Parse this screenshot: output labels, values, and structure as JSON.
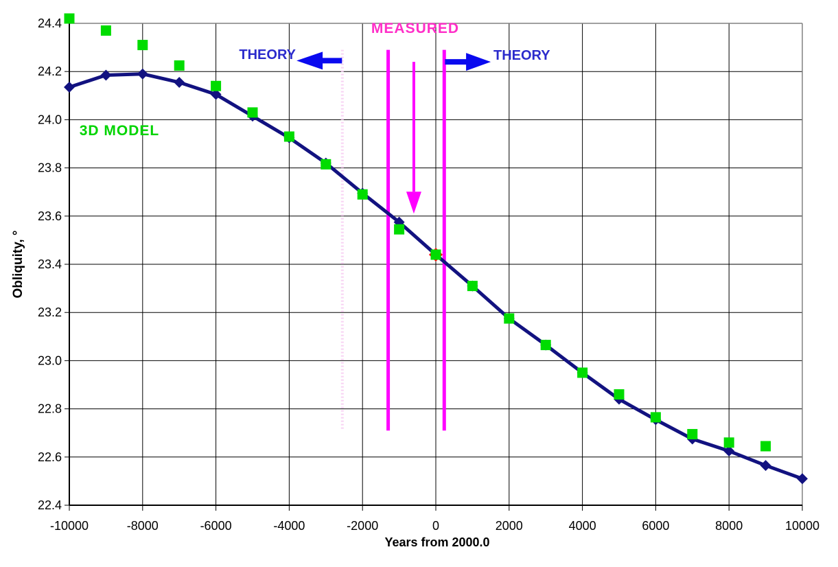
{
  "chart_data": {
    "type": "line",
    "title": "",
    "xlabel": "Years from 2000.0",
    "ylabel": "Obliquity, °",
    "xlim": [
      -10000,
      10000
    ],
    "ylim": [
      22.4,
      24.4
    ],
    "grid": true,
    "legend_position": "none",
    "x_ticks": [
      -10000,
      -8000,
      -6000,
      -4000,
      -2000,
      0,
      2000,
      4000,
      6000,
      8000,
      10000
    ],
    "x_tick_labels": [
      "-10000",
      "-8000",
      "-6000",
      "-4000",
      "-2000",
      "0",
      "2000",
      "4000",
      "6000",
      "8000",
      "10000"
    ],
    "y_ticks": [
      22.4,
      22.6,
      22.8,
      23.0,
      23.2,
      23.4,
      23.6,
      23.8,
      24.0,
      24.2,
      24.4
    ],
    "y_tick_labels": [
      "22.4",
      "22.6",
      "22.8",
      "23.0",
      "23.2",
      "23.4",
      "23.6",
      "23.8",
      "24.0",
      "24.2",
      "24.4"
    ],
    "series": [
      {
        "name": "THEORY",
        "marker": "diamond",
        "line": true,
        "color": "#121280",
        "x": [
          -10000,
          -9000,
          -8000,
          -7000,
          -6000,
          -5000,
          -4000,
          -3000,
          -2000,
          -1000,
          0,
          1000,
          2000,
          3000,
          4000,
          5000,
          6000,
          7000,
          8000,
          9000,
          10000
        ],
        "values": [
          24.135,
          24.185,
          24.19,
          24.155,
          24.105,
          24.015,
          23.925,
          23.82,
          23.695,
          23.575,
          23.44,
          23.31,
          23.175,
          23.065,
          22.95,
          22.84,
          22.755,
          22.675,
          22.625,
          22.565,
          22.51
        ]
      },
      {
        "name": "3D MODEL",
        "marker": "square",
        "line": false,
        "color": "#00dc00",
        "x": [
          -10000,
          -9000,
          -8000,
          -7000,
          -6000,
          -5000,
          -4000,
          -3000,
          -2000,
          -1000,
          0,
          1000,
          2000,
          3000,
          4000,
          5000,
          6000,
          7000,
          8000,
          9000
        ],
        "values": [
          24.42,
          24.37,
          24.31,
          24.225,
          24.14,
          24.03,
          23.93,
          23.815,
          23.69,
          23.545,
          23.44,
          23.31,
          23.175,
          23.065,
          22.95,
          22.86,
          22.765,
          22.695,
          22.66,
          22.645
        ]
      },
      {
        "name": "MEASURED",
        "marker": "diamond",
        "line": false,
        "color": "#ff0000",
        "x": [
          0
        ],
        "values": [
          23.44
        ]
      }
    ],
    "annotations": {
      "measured_label": "MEASURED",
      "theory_left_label": "THEORY",
      "theory_right_label": "THEORY",
      "model_label": "3D MODEL",
      "measured_band": {
        "x_left": -1300,
        "x_right": 230,
        "v_top": 24.29,
        "v_bottom": 22.71,
        "color": "#ff00ff"
      },
      "reference_line": {
        "x": -2550,
        "v_top": 24.29,
        "v_bottom": 22.71,
        "color": "#f8d2f3",
        "style": "dotted"
      },
      "down_arrow": {
        "x": -600,
        "v_from": 24.24,
        "v_to": 23.61,
        "color": "#ff00ff"
      },
      "left_arrow": {
        "x_from": -2560,
        "x_to": -3800,
        "v": 24.245,
        "color": "#0a0aef"
      },
      "right_arrow": {
        "x_from": 250,
        "x_to": 1500,
        "v": 24.24,
        "color": "#0a0aef"
      }
    },
    "colors": {
      "grid": "#000000",
      "border": "#808080",
      "axis": "#000000",
      "theory_text": "#2b2bcc",
      "measured_text": "#ff2fc8",
      "model_text": "#00d400"
    }
  }
}
